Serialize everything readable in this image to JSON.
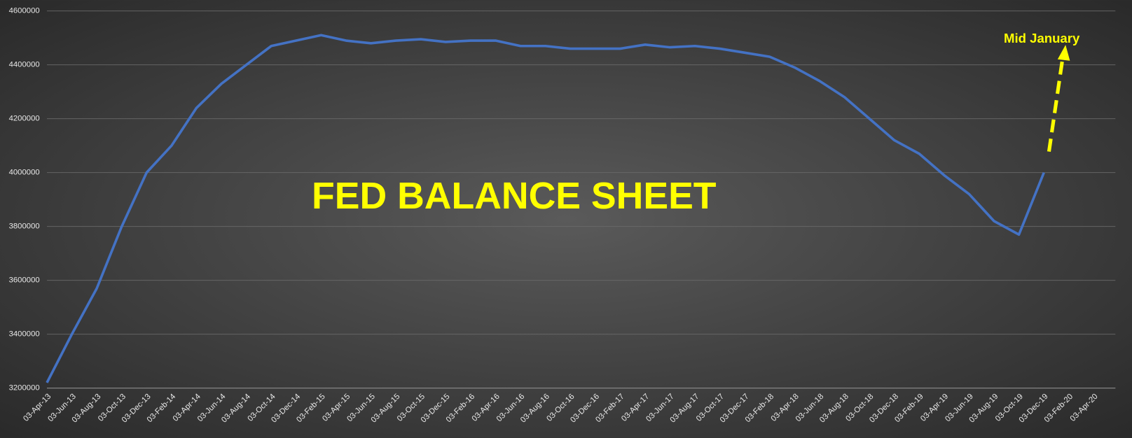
{
  "chart_data": {
    "type": "line",
    "title": "FED BALANCE SHEET",
    "annotation": "Mid January",
    "categories": [
      "03-Apr-13",
      "03-Jun-13",
      "03-Aug-13",
      "03-Oct-13",
      "03-Dec-13",
      "03-Feb-14",
      "03-Apr-14",
      "03-Jun-14",
      "03-Aug-14",
      "03-Oct-14",
      "03-Dec-14",
      "03-Feb-15",
      "03-Apr-15",
      "03-Jun-15",
      "03-Aug-15",
      "03-Oct-15",
      "03-Dec-15",
      "03-Feb-16",
      "03-Apr-16",
      "03-Jun-16",
      "03-Aug-16",
      "03-Oct-16",
      "03-Dec-16",
      "03-Feb-17",
      "03-Apr-17",
      "03-Jun-17",
      "03-Aug-17",
      "03-Oct-17",
      "03-Dec-17",
      "03-Feb-18",
      "03-Apr-18",
      "03-Jun-18",
      "03-Aug-18",
      "03-Oct-18",
      "03-Dec-18",
      "03-Feb-19",
      "03-Apr-19",
      "03-Jun-19",
      "03-Aug-19",
      "03-Oct-19",
      "03-Dec-19",
      "03-Feb-20",
      "03-Apr-20"
    ],
    "values": [
      3220000,
      3400000,
      3570000,
      3800000,
      4000000,
      4100000,
      4240000,
      4330000,
      4400000,
      4470000,
      4490000,
      4510000,
      4490000,
      4480000,
      4490000,
      4495000,
      4485000,
      4490000,
      4490000,
      4470000,
      4470000,
      4460000,
      4460000,
      4460000,
      4475000,
      4465000,
      4470000,
      4460000,
      4445000,
      4430000,
      4390000,
      4340000,
      4280000,
      4200000,
      4120000,
      4070000,
      3990000,
      3920000,
      3820000,
      3770000,
      4000000,
      null,
      null
    ],
    "color": "#4472c4",
    "ylim": [
      3200000,
      4600000
    ],
    "yticks": [
      3200000,
      3400000,
      3600000,
      3800000,
      4000000,
      4200000,
      4400000,
      4600000
    ],
    "grid": true
  }
}
